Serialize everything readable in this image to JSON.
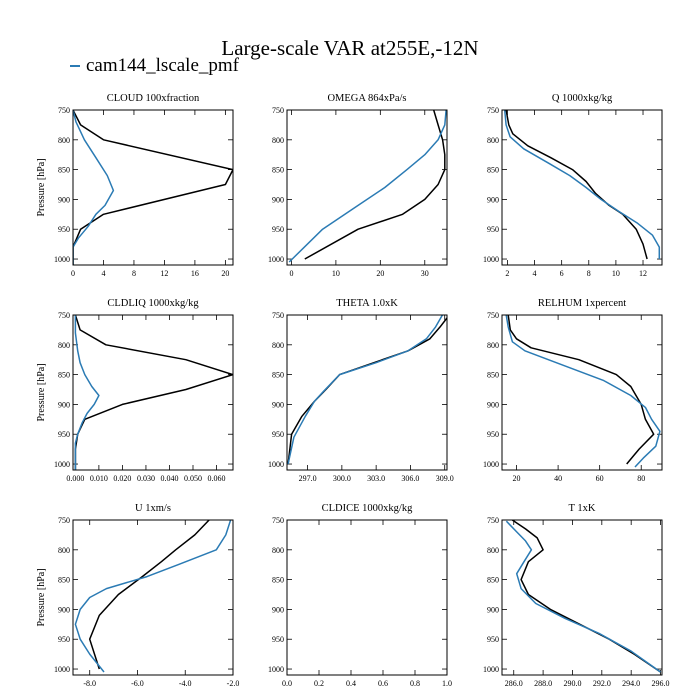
{
  "title": "Large-scale VAR at255E,-12N",
  "legend": [
    {
      "name": "cam144_lscale_pmf",
      "color": "#2b7bb4"
    },
    {
      "name": "",
      "color": "#000000"
    }
  ],
  "chart_data": [
    {
      "type": "line",
      "title": "CLOUD  100xfraction",
      "xlabel": "",
      "ylabel": "Pressure [hPa]",
      "xlim": [
        0,
        21
      ],
      "ylim": [
        1010,
        750
      ],
      "xticks": [
        0,
        4,
        8,
        12,
        16,
        20
      ],
      "xticklabels": [
        "0",
        "4",
        "8",
        "12",
        "16",
        "20"
      ],
      "yticks": [
        750,
        800,
        850,
        900,
        950,
        1000
      ],
      "yticklabels": [
        "750",
        "800",
        "850",
        "900",
        "950",
        "1000"
      ],
      "series": [
        {
          "color": "#000000",
          "points": [
            [
              0,
              750
            ],
            [
              1,
              775
            ],
            [
              4,
              800
            ],
            [
              21,
              850
            ],
            [
              20,
              875
            ],
            [
              4,
              925
            ],
            [
              1,
              950
            ],
            [
              0,
              980
            ],
            [
              0,
              1010
            ]
          ]
        },
        {
          "color": "#2b7bb4",
          "points": [
            [
              0,
              750
            ],
            [
              0.4,
              770
            ],
            [
              1.5,
              800
            ],
            [
              3,
              830
            ],
            [
              4.5,
              860
            ],
            [
              5.3,
              885
            ],
            [
              4.2,
              910
            ],
            [
              3,
              925
            ],
            [
              2,
              945
            ],
            [
              0.7,
              965
            ],
            [
              0,
              980
            ],
            [
              0,
              1010
            ]
          ]
        }
      ]
    },
    {
      "type": "line",
      "title": "OMEGA  864xPa/s",
      "xlabel": "",
      "ylabel": "",
      "xlim": [
        -1,
        35
      ],
      "ylim": [
        1010,
        750
      ],
      "xticks": [
        0,
        10,
        20,
        30
      ],
      "xticklabels": [
        "0",
        "10",
        "20",
        "30"
      ],
      "yticks": [
        750,
        800,
        850,
        900,
        950,
        1000
      ],
      "yticklabels": [
        "750",
        "800",
        "850",
        "900",
        "950",
        "1000"
      ],
      "series": [
        {
          "color": "#000000",
          "points": [
            [
              3,
              1000
            ],
            [
              15,
              950
            ],
            [
              25,
              925
            ],
            [
              30,
              900
            ],
            [
              33,
              875
            ],
            [
              34.5,
              850
            ],
            [
              34.5,
              825
            ],
            [
              34,
              800
            ],
            [
              33,
              775
            ],
            [
              32,
              750
            ]
          ]
        },
        {
          "color": "#2b7bb4",
          "points": [
            [
              -0.5,
              1005
            ],
            [
              7,
              950
            ],
            [
              15,
              910
            ],
            [
              21,
              880
            ],
            [
              26,
              850
            ],
            [
              30,
              825
            ],
            [
              33,
              800
            ],
            [
              34.5,
              775
            ],
            [
              34.8,
              750
            ]
          ]
        }
      ]
    },
    {
      "type": "line",
      "title": "Q  1000xkg/kg",
      "xlabel": "",
      "ylabel": "",
      "xlim": [
        1.6,
        13.4
      ],
      "ylim": [
        1010,
        750
      ],
      "xticks": [
        2,
        4,
        6,
        8,
        10,
        12
      ],
      "xticklabels": [
        "2",
        "4",
        "6",
        "8",
        "10",
        "12"
      ],
      "yticks": [
        750,
        800,
        850,
        900,
        950,
        1000
      ],
      "yticklabels": [
        "750",
        "800",
        "850",
        "900",
        "950",
        "1000"
      ],
      "series": [
        {
          "color": "#000000",
          "points": [
            [
              1.9,
              750
            ],
            [
              2.1,
              775
            ],
            [
              2.4,
              790
            ],
            [
              3.5,
              810
            ],
            [
              5.2,
              830
            ],
            [
              6.8,
              850
            ],
            [
              7.8,
              870
            ],
            [
              8.5,
              890
            ],
            [
              9.5,
              910
            ],
            [
              10.5,
              925
            ],
            [
              11.5,
              950
            ],
            [
              12,
              975
            ],
            [
              12.3,
              1000
            ]
          ]
        },
        {
          "color": "#2b7bb4",
          "points": [
            [
              1.8,
              750
            ],
            [
              1.9,
              775
            ],
            [
              2.2,
              795
            ],
            [
              3.2,
              815
            ],
            [
              5.1,
              840
            ],
            [
              6.6,
              860
            ],
            [
              7.8,
              880
            ],
            [
              8.9,
              900
            ],
            [
              10.2,
              920
            ],
            [
              11.6,
              940
            ],
            [
              12.7,
              960
            ],
            [
              13.2,
              980
            ],
            [
              13.2,
              1000
            ]
          ]
        }
      ]
    },
    {
      "type": "line",
      "title": "CLDLIQ  1000xkg/kg",
      "xlabel": "",
      "ylabel": "Pressure [hPa]",
      "xlim": [
        -0.001,
        0.067
      ],
      "ylim": [
        1010,
        750
      ],
      "xticks": [
        0,
        0.01,
        0.02,
        0.03,
        0.04,
        0.05,
        0.06
      ],
      "xticklabels": [
        "0.000",
        "0.010",
        "0.020",
        "0.030",
        "0.040",
        "0.050",
        "0.060"
      ],
      "yticks": [
        750,
        800,
        850,
        900,
        950,
        1000
      ],
      "yticklabels": [
        "750",
        "800",
        "850",
        "900",
        "950",
        "1000"
      ],
      "series": [
        {
          "color": "#000000",
          "points": [
            [
              0,
              750
            ],
            [
              0.002,
              775
            ],
            [
              0.013,
              800
            ],
            [
              0.047,
              825
            ],
            [
              0.067,
              850
            ],
            [
              0.047,
              875
            ],
            [
              0.02,
              900
            ],
            [
              0.004,
              925
            ],
            [
              0.001,
              950
            ],
            [
              0,
              975
            ],
            [
              0,
              1010
            ]
          ]
        },
        {
          "color": "#2b7bb4",
          "points": [
            [
              0,
              750
            ],
            [
              0,
              780
            ],
            [
              0.001,
              810
            ],
            [
              0.002,
              830
            ],
            [
              0.004,
              850
            ],
            [
              0.007,
              870
            ],
            [
              0.01,
              885
            ],
            [
              0.008,
              900
            ],
            [
              0.005,
              915
            ],
            [
              0.003,
              930
            ],
            [
              0.001,
              950
            ],
            [
              0,
              965
            ],
            [
              0,
              1010
            ]
          ]
        }
      ]
    },
    {
      "type": "line",
      "title": "THETA  1.0xK",
      "xlabel": "",
      "ylabel": "",
      "xlim": [
        295.2,
        309.2
      ],
      "ylim": [
        1010,
        750
      ],
      "xticks": [
        297,
        300,
        303,
        306,
        309
      ],
      "xticklabels": [
        "297.0",
        "300.0",
        "303.0",
        "306.0",
        "309.0"
      ],
      "yticks": [
        750,
        800,
        850,
        900,
        950,
        1000
      ],
      "yticklabels": [
        "750",
        "800",
        "850",
        "900",
        "950",
        "1000"
      ],
      "series": [
        {
          "color": "#000000",
          "points": [
            [
              295.3,
              1000
            ],
            [
              295.6,
              950
            ],
            [
              296.5,
              920
            ],
            [
              297.6,
              895
            ],
            [
              298.6,
              875
            ],
            [
              299.8,
              850
            ],
            [
              302.8,
              830
            ],
            [
              305.8,
              810
            ],
            [
              307.7,
              790
            ],
            [
              308.6,
              770
            ],
            [
              309.2,
              755
            ]
          ]
        },
        {
          "color": "#2b7bb4",
          "points": [
            [
              295.3,
              1000
            ],
            [
              295.8,
              955
            ],
            [
              296.8,
              920
            ],
            [
              297.6,
              895
            ],
            [
              298.4,
              878
            ],
            [
              299.8,
              850
            ],
            [
              303,
              830
            ],
            [
              305.8,
              810
            ],
            [
              307.4,
              790
            ],
            [
              308.2,
              770
            ],
            [
              308.8,
              750
            ]
          ]
        }
      ]
    },
    {
      "type": "line",
      "title": "RELHUM  1xpercent",
      "xlabel": "",
      "ylabel": "",
      "xlim": [
        13,
        90
      ],
      "ylim": [
        1010,
        750
      ],
      "xticks": [
        20,
        40,
        60,
        80
      ],
      "xticklabels": [
        "20",
        "40",
        "60",
        "80"
      ],
      "yticks": [
        750,
        800,
        850,
        900,
        950,
        1000
      ],
      "yticklabels": [
        "750",
        "800",
        "850",
        "900",
        "950",
        "1000"
      ],
      "series": [
        {
          "color": "#000000",
          "points": [
            [
              16,
              750
            ],
            [
              17,
              775
            ],
            [
              20,
              790
            ],
            [
              27,
              805
            ],
            [
              50,
              825
            ],
            [
              68,
              850
            ],
            [
              75,
              870
            ],
            [
              80,
              900
            ],
            [
              82,
              925
            ],
            [
              86,
              950
            ],
            [
              79,
              975
            ],
            [
              73,
              1000
            ]
          ]
        },
        {
          "color": "#2b7bb4",
          "points": [
            [
              15,
              750
            ],
            [
              16,
              770
            ],
            [
              18,
              795
            ],
            [
              24,
              810
            ],
            [
              43,
              835
            ],
            [
              62,
              860
            ],
            [
              75,
              885
            ],
            [
              82,
              905
            ],
            [
              85,
              925
            ],
            [
              89,
              945
            ],
            [
              87,
              970
            ],
            [
              81,
              990
            ],
            [
              77,
              1005
            ]
          ]
        }
      ]
    },
    {
      "type": "line",
      "title": "U  1xm/s",
      "xlabel": "",
      "ylabel": "Pressure [hPa]",
      "xlim": [
        -8.7,
        -2
      ],
      "ylim": [
        1010,
        750
      ],
      "xticks": [
        -8,
        -6,
        -4,
        -2
      ],
      "xticklabels": [
        "-8.0",
        "-6.0",
        "-4.0",
        "-2.0"
      ],
      "yticks": [
        750,
        800,
        850,
        900,
        950,
        1000
      ],
      "yticklabels": [
        "750",
        "800",
        "850",
        "900",
        "950",
        "1000"
      ],
      "series": [
        {
          "color": "#000000",
          "points": [
            [
              -3,
              750
            ],
            [
              -3.6,
              775
            ],
            [
              -4.4,
              800
            ],
            [
              -5,
              820
            ],
            [
              -5.8,
              845
            ],
            [
              -6.8,
              875
            ],
            [
              -7.6,
              910
            ],
            [
              -8,
              950
            ],
            [
              -7.8,
              975
            ],
            [
              -7.6,
              1000
            ]
          ]
        },
        {
          "color": "#2b7bb4",
          "points": [
            [
              -2.1,
              750
            ],
            [
              -2.3,
              775
            ],
            [
              -2.7,
              800
            ],
            [
              -4.3,
              825
            ],
            [
              -5.6,
              845
            ],
            [
              -7.3,
              865
            ],
            [
              -8,
              880
            ],
            [
              -8.4,
              900
            ],
            [
              -8.6,
              925
            ],
            [
              -8.4,
              950
            ],
            [
              -8,
              975
            ],
            [
              -7.4,
              1005
            ]
          ]
        }
      ]
    },
    {
      "type": "line",
      "title": "CLDICE  1000xkg/kg",
      "xlabel": "",
      "ylabel": "",
      "xlim": [
        0,
        1
      ],
      "ylim": [
        1010,
        750
      ],
      "xticks": [
        0,
        0.2,
        0.4,
        0.6,
        0.8,
        1
      ],
      "xticklabels": [
        "0.0",
        "0.2",
        "0.4",
        "0.6",
        "0.8",
        "1.0"
      ],
      "yticks": [
        750,
        800,
        850,
        900,
        950,
        1000
      ],
      "yticklabels": [
        "750",
        "800",
        "850",
        "900",
        "950",
        "1000"
      ],
      "series": []
    },
    {
      "type": "line",
      "title": "T  1xK",
      "xlabel": "",
      "ylabel": "",
      "xlim": [
        285.2,
        296.1
      ],
      "ylim": [
        1010,
        750
      ],
      "xticks": [
        286,
        288,
        290,
        292,
        294,
        296
      ],
      "xticklabels": [
        "286.0",
        "288.0",
        "290.0",
        "292.0",
        "294.0",
        "296.0"
      ],
      "yticks": [
        750,
        800,
        850,
        900,
        950,
        1000
      ],
      "yticklabels": [
        "750",
        "800",
        "850",
        "900",
        "950",
        "1000"
      ],
      "series": [
        {
          "color": "#000000",
          "points": [
            [
              285.9,
              750
            ],
            [
              286.8,
              765
            ],
            [
              287.6,
              780
            ],
            [
              288,
              800
            ],
            [
              287,
              820
            ],
            [
              286.5,
              850
            ],
            [
              287,
              875
            ],
            [
              288.5,
              900
            ],
            [
              290.5,
              925
            ],
            [
              292.5,
              950
            ],
            [
              294.2,
              975
            ],
            [
              296,
              1005
            ]
          ]
        },
        {
          "color": "#2b7bb4",
          "points": [
            [
              285.5,
              752
            ],
            [
              286.2,
              770
            ],
            [
              286.8,
              785
            ],
            [
              287.2,
              800
            ],
            [
              286.7,
              820
            ],
            [
              286.2,
              840
            ],
            [
              286.5,
              865
            ],
            [
              287.5,
              890
            ],
            [
              289.5,
              915
            ],
            [
              291.8,
              940
            ],
            [
              294,
              970
            ],
            [
              296,
              1005
            ]
          ]
        }
      ]
    }
  ]
}
